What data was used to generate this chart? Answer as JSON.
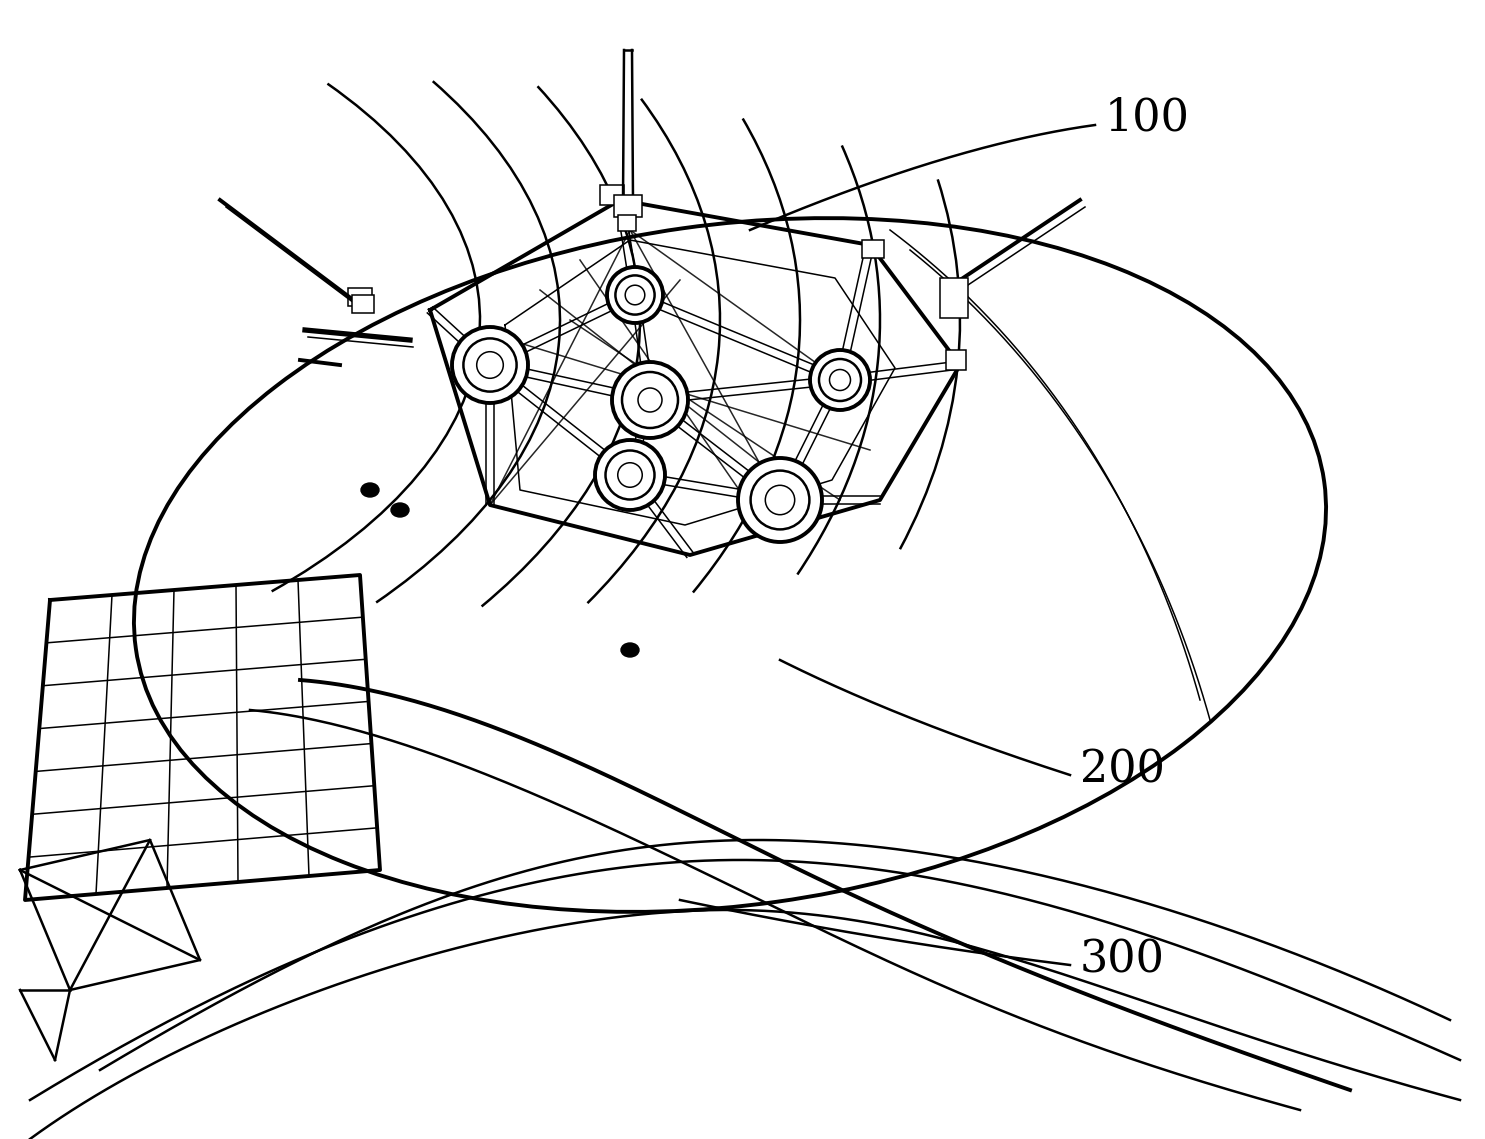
{
  "background_color": "#ffffff",
  "line_color": "#000000",
  "label_100": "100",
  "label_200": "200",
  "label_300": "300",
  "label_fontsize": 32,
  "fig_width": 14.85,
  "fig_height": 11.39
}
